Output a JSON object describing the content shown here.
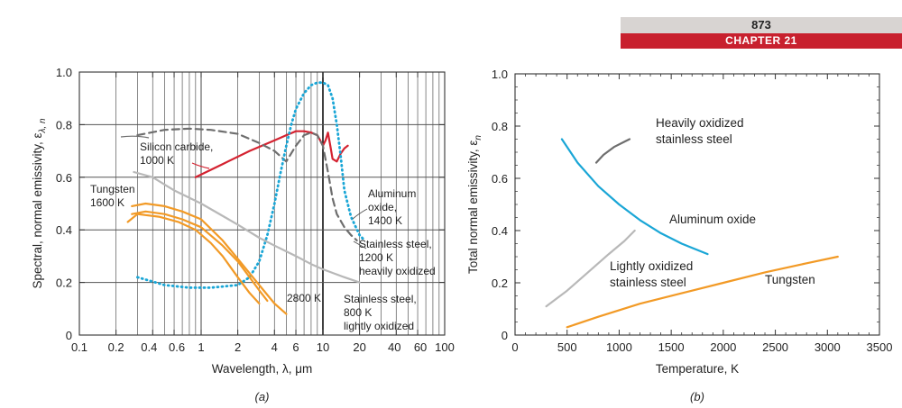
{
  "header": {
    "page_number": "873",
    "chapter": "CHAPTER 21"
  },
  "chart_data": [
    {
      "id": "a",
      "panel_label": "(a)",
      "type": "line",
      "xlabel": "Wavelength, λ, μm",
      "ylabel": "Spectral, normal emissivity, ε",
      "ylabel_sub": "λ, n",
      "x_scale": "log",
      "xlim": [
        0.1,
        100
      ],
      "ylim": [
        0,
        1.0
      ],
      "xticks": [
        {
          "v": 0.1,
          "label": "0.1"
        },
        {
          "v": 0.2,
          "label": "0.2"
        },
        {
          "v": 0.4,
          "label": "0.4"
        },
        {
          "v": 0.6,
          "label": "0.6"
        },
        {
          "v": 1,
          "label": "1"
        },
        {
          "v": 2,
          "label": "2"
        },
        {
          "v": 4,
          "label": "4"
        },
        {
          "v": 6,
          "label": "6"
        },
        {
          "v": 10,
          "label": "10"
        },
        {
          "v": 20,
          "label": "20"
        },
        {
          "v": 40,
          "label": "40"
        },
        {
          "v": 60,
          "label": "60"
        },
        {
          "v": 100,
          "label": "100"
        }
      ],
      "yticks": [
        {
          "v": 0,
          "label": "0"
        },
        {
          "v": 0.2,
          "label": "0.2"
        },
        {
          "v": 0.4,
          "label": "0.4"
        },
        {
          "v": 0.6,
          "label": "0.6"
        },
        {
          "v": 0.8,
          "label": "0.8"
        },
        {
          "v": 1.0,
          "label": "1.0"
        }
      ],
      "grid": true,
      "series": [
        {
          "key": "sic",
          "color": "#d42230",
          "style": "solid",
          "x": [
            0.9,
            1.5,
            2.5,
            4,
            5,
            6,
            7,
            8,
            9,
            9.5,
            10,
            10.5,
            11,
            11.5,
            12,
            13,
            14,
            15,
            16
          ],
          "y": [
            0.6,
            0.65,
            0.7,
            0.74,
            0.76,
            0.775,
            0.775,
            0.77,
            0.76,
            0.74,
            0.72,
            0.74,
            0.77,
            0.72,
            0.67,
            0.66,
            0.69,
            0.71,
            0.72
          ]
        },
        {
          "key": "sic_dash",
          "color": "#6e6e6e",
          "style": "dashed",
          "x": [
            0.3,
            0.5,
            0.8,
            1.2,
            2,
            3,
            4,
            5,
            6,
            7,
            8,
            9,
            10,
            11,
            12,
            13,
            15,
            17,
            19
          ],
          "y": [
            0.76,
            0.78,
            0.785,
            0.78,
            0.765,
            0.73,
            0.7,
            0.66,
            0.72,
            0.76,
            0.77,
            0.76,
            0.72,
            0.62,
            0.52,
            0.46,
            0.41,
            0.38,
            0.36
          ]
        },
        {
          "key": "al2o3",
          "color": "#1aa6d6",
          "style": "dotted",
          "x": [
            0.3,
            0.5,
            0.8,
            1.2,
            2,
            2.5,
            3,
            3.5,
            4,
            4.5,
            5,
            5.5,
            6,
            7,
            8,
            9,
            10,
            11,
            12,
            13,
            14,
            15,
            17,
            20,
            22
          ],
          "y": [
            0.22,
            0.19,
            0.18,
            0.18,
            0.19,
            0.22,
            0.28,
            0.38,
            0.5,
            0.62,
            0.72,
            0.8,
            0.86,
            0.92,
            0.95,
            0.96,
            0.96,
            0.95,
            0.9,
            0.8,
            0.68,
            0.55,
            0.45,
            0.38,
            0.36
          ]
        },
        {
          "key": "ss_light",
          "color": "#b8b8b8",
          "style": "solid",
          "x": [
            0.28,
            0.4,
            0.6,
            1,
            2,
            3,
            4,
            6,
            8,
            10,
            15,
            20
          ],
          "y": [
            0.62,
            0.6,
            0.55,
            0.5,
            0.42,
            0.37,
            0.34,
            0.3,
            0.27,
            0.25,
            0.22,
            0.2
          ]
        },
        {
          "key": "w1",
          "color": "#f29a26",
          "style": "solid",
          "x": [
            0.27,
            0.35,
            0.5,
            0.7,
            1,
            1.5,
            2,
            3,
            4,
            5
          ],
          "y": [
            0.49,
            0.5,
            0.49,
            0.47,
            0.44,
            0.36,
            0.29,
            0.19,
            0.12,
            0.08
          ]
        },
        {
          "key": "w2",
          "color": "#f29a26",
          "style": "solid",
          "x": [
            0.27,
            0.35,
            0.5,
            0.7,
            1,
            1.5,
            2,
            2.5,
            3,
            3.5
          ],
          "y": [
            0.46,
            0.47,
            0.46,
            0.44,
            0.41,
            0.34,
            0.28,
            0.22,
            0.17,
            0.13
          ]
        },
        {
          "key": "w3",
          "color": "#f29a26",
          "style": "solid",
          "x": [
            0.25,
            0.3,
            0.45,
            0.65,
            0.9,
            1.2,
            1.5,
            2,
            2.5,
            3
          ],
          "y": [
            0.43,
            0.46,
            0.45,
            0.43,
            0.4,
            0.35,
            0.3,
            0.22,
            0.16,
            0.12
          ]
        }
      ],
      "annotations": [
        {
          "key": "sic_label",
          "lines": [
            "Silicon carbide,",
            "1000 K"
          ]
        },
        {
          "key": "w_label",
          "lines": [
            "Tungsten",
            "1600 K"
          ]
        },
        {
          "key": "al_label",
          "lines": [
            "Aluminum",
            "oxide,",
            "1400 K"
          ]
        },
        {
          "key": "ss_heavy_label",
          "lines": [
            "Stainless steel,",
            "1200 K",
            "heavily oxidized"
          ]
        },
        {
          "key": "t2800_label",
          "lines": [
            "2800 K"
          ]
        },
        {
          "key": "ss_light_label",
          "lines": [
            "Stainless steel,",
            "800 K",
            "lightly oxidized"
          ]
        }
      ]
    },
    {
      "id": "b",
      "panel_label": "(b)",
      "type": "line",
      "xlabel": "Temperature, K",
      "ylabel": "Total normal emissivity, ε",
      "ylabel_sub": "n",
      "xlim": [
        0,
        3500
      ],
      "ylim": [
        0,
        1.0
      ],
      "xticks": [
        {
          "v": 0,
          "label": "0"
        },
        {
          "v": 500,
          "label": "500"
        },
        {
          "v": 1000,
          "label": "1000"
        },
        {
          "v": 1500,
          "label": "1500"
        },
        {
          "v": 2000,
          "label": "2000"
        },
        {
          "v": 2500,
          "label": "2500"
        },
        {
          "v": 3000,
          "label": "3000"
        },
        {
          "v": 3500,
          "label": "3500"
        }
      ],
      "yticks": [
        {
          "v": 0,
          "label": "0"
        },
        {
          "v": 0.2,
          "label": "0.2"
        },
        {
          "v": 0.4,
          "label": "0.4"
        },
        {
          "v": 0.6,
          "label": "0.6"
        },
        {
          "v": 0.8,
          "label": "0.8"
        },
        {
          "v": 1.0,
          "label": "1.0"
        }
      ],
      "grid": false,
      "series": [
        {
          "key": "ss_heavy",
          "name": "Heavily oxidized stainless steel",
          "color": "#6e6e6e",
          "style": "solid",
          "x": [
            780,
            850,
            950,
            1050,
            1100
          ],
          "y": [
            0.66,
            0.69,
            0.72,
            0.74,
            0.75
          ]
        },
        {
          "key": "al2o3",
          "name": "Aluminum oxide",
          "color": "#1aa6d6",
          "style": "solid",
          "x": [
            450,
            600,
            800,
            1000,
            1200,
            1400,
            1600,
            1850
          ],
          "y": [
            0.75,
            0.66,
            0.57,
            0.5,
            0.44,
            0.39,
            0.35,
            0.31
          ]
        },
        {
          "key": "ss_light",
          "name": "Lightly oxidized stainless steel",
          "color": "#b8b8b8",
          "style": "solid",
          "x": [
            300,
            500,
            700,
            900,
            1050,
            1150
          ],
          "y": [
            0.11,
            0.17,
            0.24,
            0.31,
            0.36,
            0.4
          ]
        },
        {
          "key": "w",
          "name": "Tungsten",
          "color": "#f29a26",
          "style": "solid",
          "x": [
            500,
            800,
            1200,
            1600,
            2000,
            2400,
            2800,
            3100
          ],
          "y": [
            0.03,
            0.07,
            0.12,
            0.16,
            0.2,
            0.24,
            0.275,
            0.3
          ]
        }
      ],
      "annotations": [
        {
          "key": "heavy_label",
          "lines": [
            "Heavily oxidized",
            "stainless steel"
          ]
        },
        {
          "key": "al_label",
          "lines": [
            "Aluminum oxide"
          ]
        },
        {
          "key": "light_label",
          "lines": [
            "Lightly oxidized",
            "stainless steel"
          ]
        },
        {
          "key": "w_label",
          "lines": [
            "Tungsten"
          ]
        }
      ]
    }
  ]
}
